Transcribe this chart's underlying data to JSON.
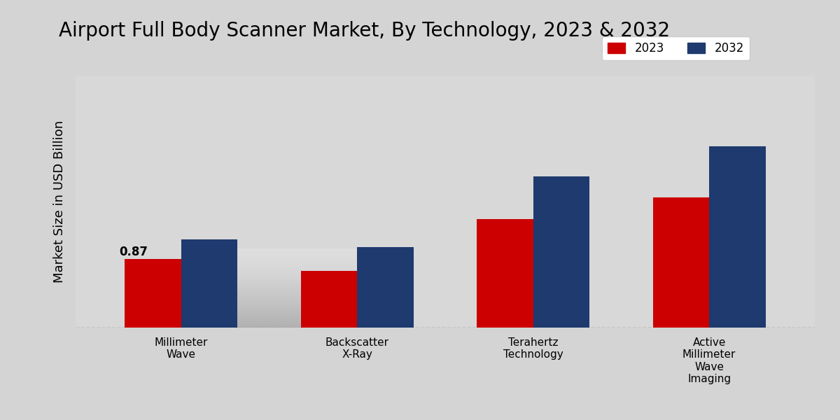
{
  "title": "Airport Full Body Scanner Market, By Technology, 2023 & 2032",
  "ylabel": "Market Size in USD Billion",
  "categories": [
    "Millimeter\nWave",
    "Backscatter\nX-Ray",
    "Terahertz\nTechnology",
    "Active\nMillimeter\nWave\nImaging"
  ],
  "values_2023": [
    0.87,
    0.72,
    1.38,
    1.65
  ],
  "values_2032": [
    1.12,
    1.02,
    1.92,
    2.3
  ],
  "color_2023": "#cc0000",
  "color_2032": "#1e3a6e",
  "annotation_text": "0.87",
  "background_top": "#d8d8d8",
  "background_bottom": "#c0c0c0",
  "bar_width": 0.32,
  "legend_labels": [
    "2023",
    "2032"
  ],
  "ylim": [
    0,
    3.2
  ],
  "title_fontsize": 20,
  "ylabel_fontsize": 13,
  "tick_fontsize": 11,
  "legend_fontsize": 12
}
